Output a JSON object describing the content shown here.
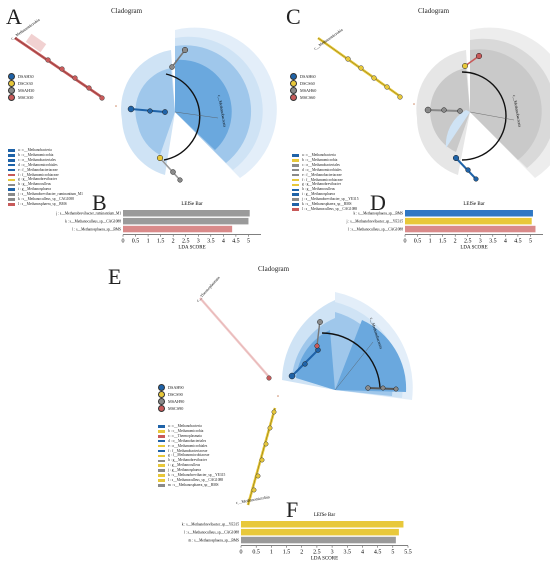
{
  "panels": [
    {
      "letter": "A",
      "title": "Cladogram",
      "legend": [
        "DSAH30",
        "DSCS30",
        "MSAH30",
        "MSCS30"
      ],
      "taxa": [
        "a : c__Methanobacteria",
        "b : c__Methanomicrobia",
        "c : o__Methanobacteriales",
        "d : o__Methanomicrobiales",
        "e : f__Methanobacteriaceae",
        "f : f__Methanomicrobiaceae",
        "g : g__Methanobrevibacter",
        "h : g__Methanoculleus",
        "i : g__Methanosphaera",
        "j : s__Methanobrevibacter_ruminantium_M1",
        "k : s__Methanoculleus_sp__CAG1088",
        "l : s__Methanosphaera_sp__BMS"
      ],
      "labels": [
        "c__Methanomicrobia",
        "c__Methanobacteria"
      ]
    },
    {
      "letter": "C",
      "title": "Cladogram",
      "legend": [
        "DSAH60",
        "DSCS60",
        "MSAH60",
        "MSCS60"
      ],
      "taxa": [
        "a : c__Methanobacteria",
        "b : c__Methanomicrobia",
        "c : o__Methanobacteriales",
        "d : o__Methanomicrobiales",
        "e : f__Methanobacteriaceae",
        "f : f__Methanomicrobiaceae",
        "g : g__Methanobrevibacter",
        "h : g__Methanoculleus",
        "i : g__Methanosphaera",
        "j : s__Methanobrevibacter_sp__YE315",
        "k : s__Methanosphaera_sp__BMS",
        "l : s__Methanoculleus_sp__CAG1088"
      ],
      "labels": [
        "c__Methanomicrobia",
        "c__Methanobacteria"
      ]
    },
    {
      "letter": "E",
      "title": "Cladogram",
      "legend": [
        "DSAH90",
        "DSCS90",
        "MSAH90",
        "MSCS90"
      ],
      "taxa": [
        "a : c__Methanobacteria",
        "b : c__Methanomicrobia",
        "c : c__Thermoplasmata",
        "d : o__Methanobacteriales",
        "e : o__Methanomicrobiales",
        "f : f__Methanobacteriaceae",
        "g : f__Methanomicrobiaceae",
        "h : g__Methanobrevibacter",
        "i : g__Methanoculleus",
        "j : g__Methanosphaera",
        "k : s__Methanobrevibacter_sp__YE315",
        "l : s__Methanoculleus_sp__CAG1088",
        "m : s__Methanosphaera_sp__BMS"
      ],
      "labels": [
        "c__Thermoplasmata",
        "c__Methanobacteria",
        "c__Methanomicrobia"
      ]
    }
  ],
  "colors": {
    "DS_AH": "#1f63a8",
    "DS_CS": "#e8c83a",
    "MS_AH": "#8a8a8a",
    "MS_CS": "#c85a5a",
    "light_blue": "#cfe3f5",
    "mid_blue": "#9fc7eb",
    "deep_blue": "#6aa8de",
    "light_gray": "#e6e6e6",
    "mid_gray": "#c9c9c9",
    "deep_gray": "#a9a9a9",
    "light_yellow": "#f2e6a8",
    "light_red": "#e8b3b3"
  },
  "chart_data": [
    {
      "type": "bar",
      "panel": "B",
      "title": "LEfSe Bar",
      "xlabel": "LDA SCORE",
      "xlim": [
        0,
        5.5
      ],
      "xticks": [
        "0",
        "0.5",
        "1",
        "1.5",
        "2",
        "2.5",
        "3",
        "3.5",
        "4",
        "4.5",
        "5"
      ],
      "categories": [
        "j : s__Methanobrevibacter_ruminantium_M1",
        "k : s__Methanoculleus_sp__CAG1088",
        "l : s__Methanosphaera_sp__BMS"
      ],
      "values": [
        5.05,
        5.0,
        4.35
      ],
      "colors": [
        "#9a9a9a",
        "#9a9a9a",
        "#d98a8a"
      ]
    },
    {
      "type": "bar",
      "panel": "D",
      "title": "LEfSe Bar",
      "xlabel": "LDA SCORE",
      "xlim": [
        0,
        5.5
      ],
      "xticks": [
        "0",
        "0.5",
        "1",
        "1.5",
        "2",
        "2.5",
        "3",
        "3.5",
        "4",
        "4.5",
        "5"
      ],
      "categories": [
        "k : s__Methanosphaera_sp__BMS",
        "j : s__Methanobrevibacter_sp__YE315",
        "l : s__Methanoculleus_sp__CAG1088"
      ],
      "values": [
        5.1,
        5.05,
        5.2
      ],
      "colors": [
        "#2f78c4",
        "#e8c83a",
        "#d98a8a"
      ]
    },
    {
      "type": "bar",
      "panel": "F",
      "title": "LEfSe Bar",
      "xlabel": "LDA SCORE",
      "xlim": [
        0,
        5.5
      ],
      "xticks": [
        "0",
        "0.5",
        "1",
        "1.5",
        "2",
        "2.5",
        "3",
        "3.5",
        "4",
        "4.5",
        "5",
        "5.5"
      ],
      "categories": [
        "k : s__Methanobrevibacter_sp__YE315",
        "l : s__Methanoculleus_sp__CAG1088",
        "m : s__Methanosphaera_sp__BMS"
      ],
      "values": [
        5.35,
        5.2,
        5.1
      ],
      "colors": [
        "#e8c83a",
        "#e8c83a",
        "#9a9a9a"
      ]
    }
  ]
}
